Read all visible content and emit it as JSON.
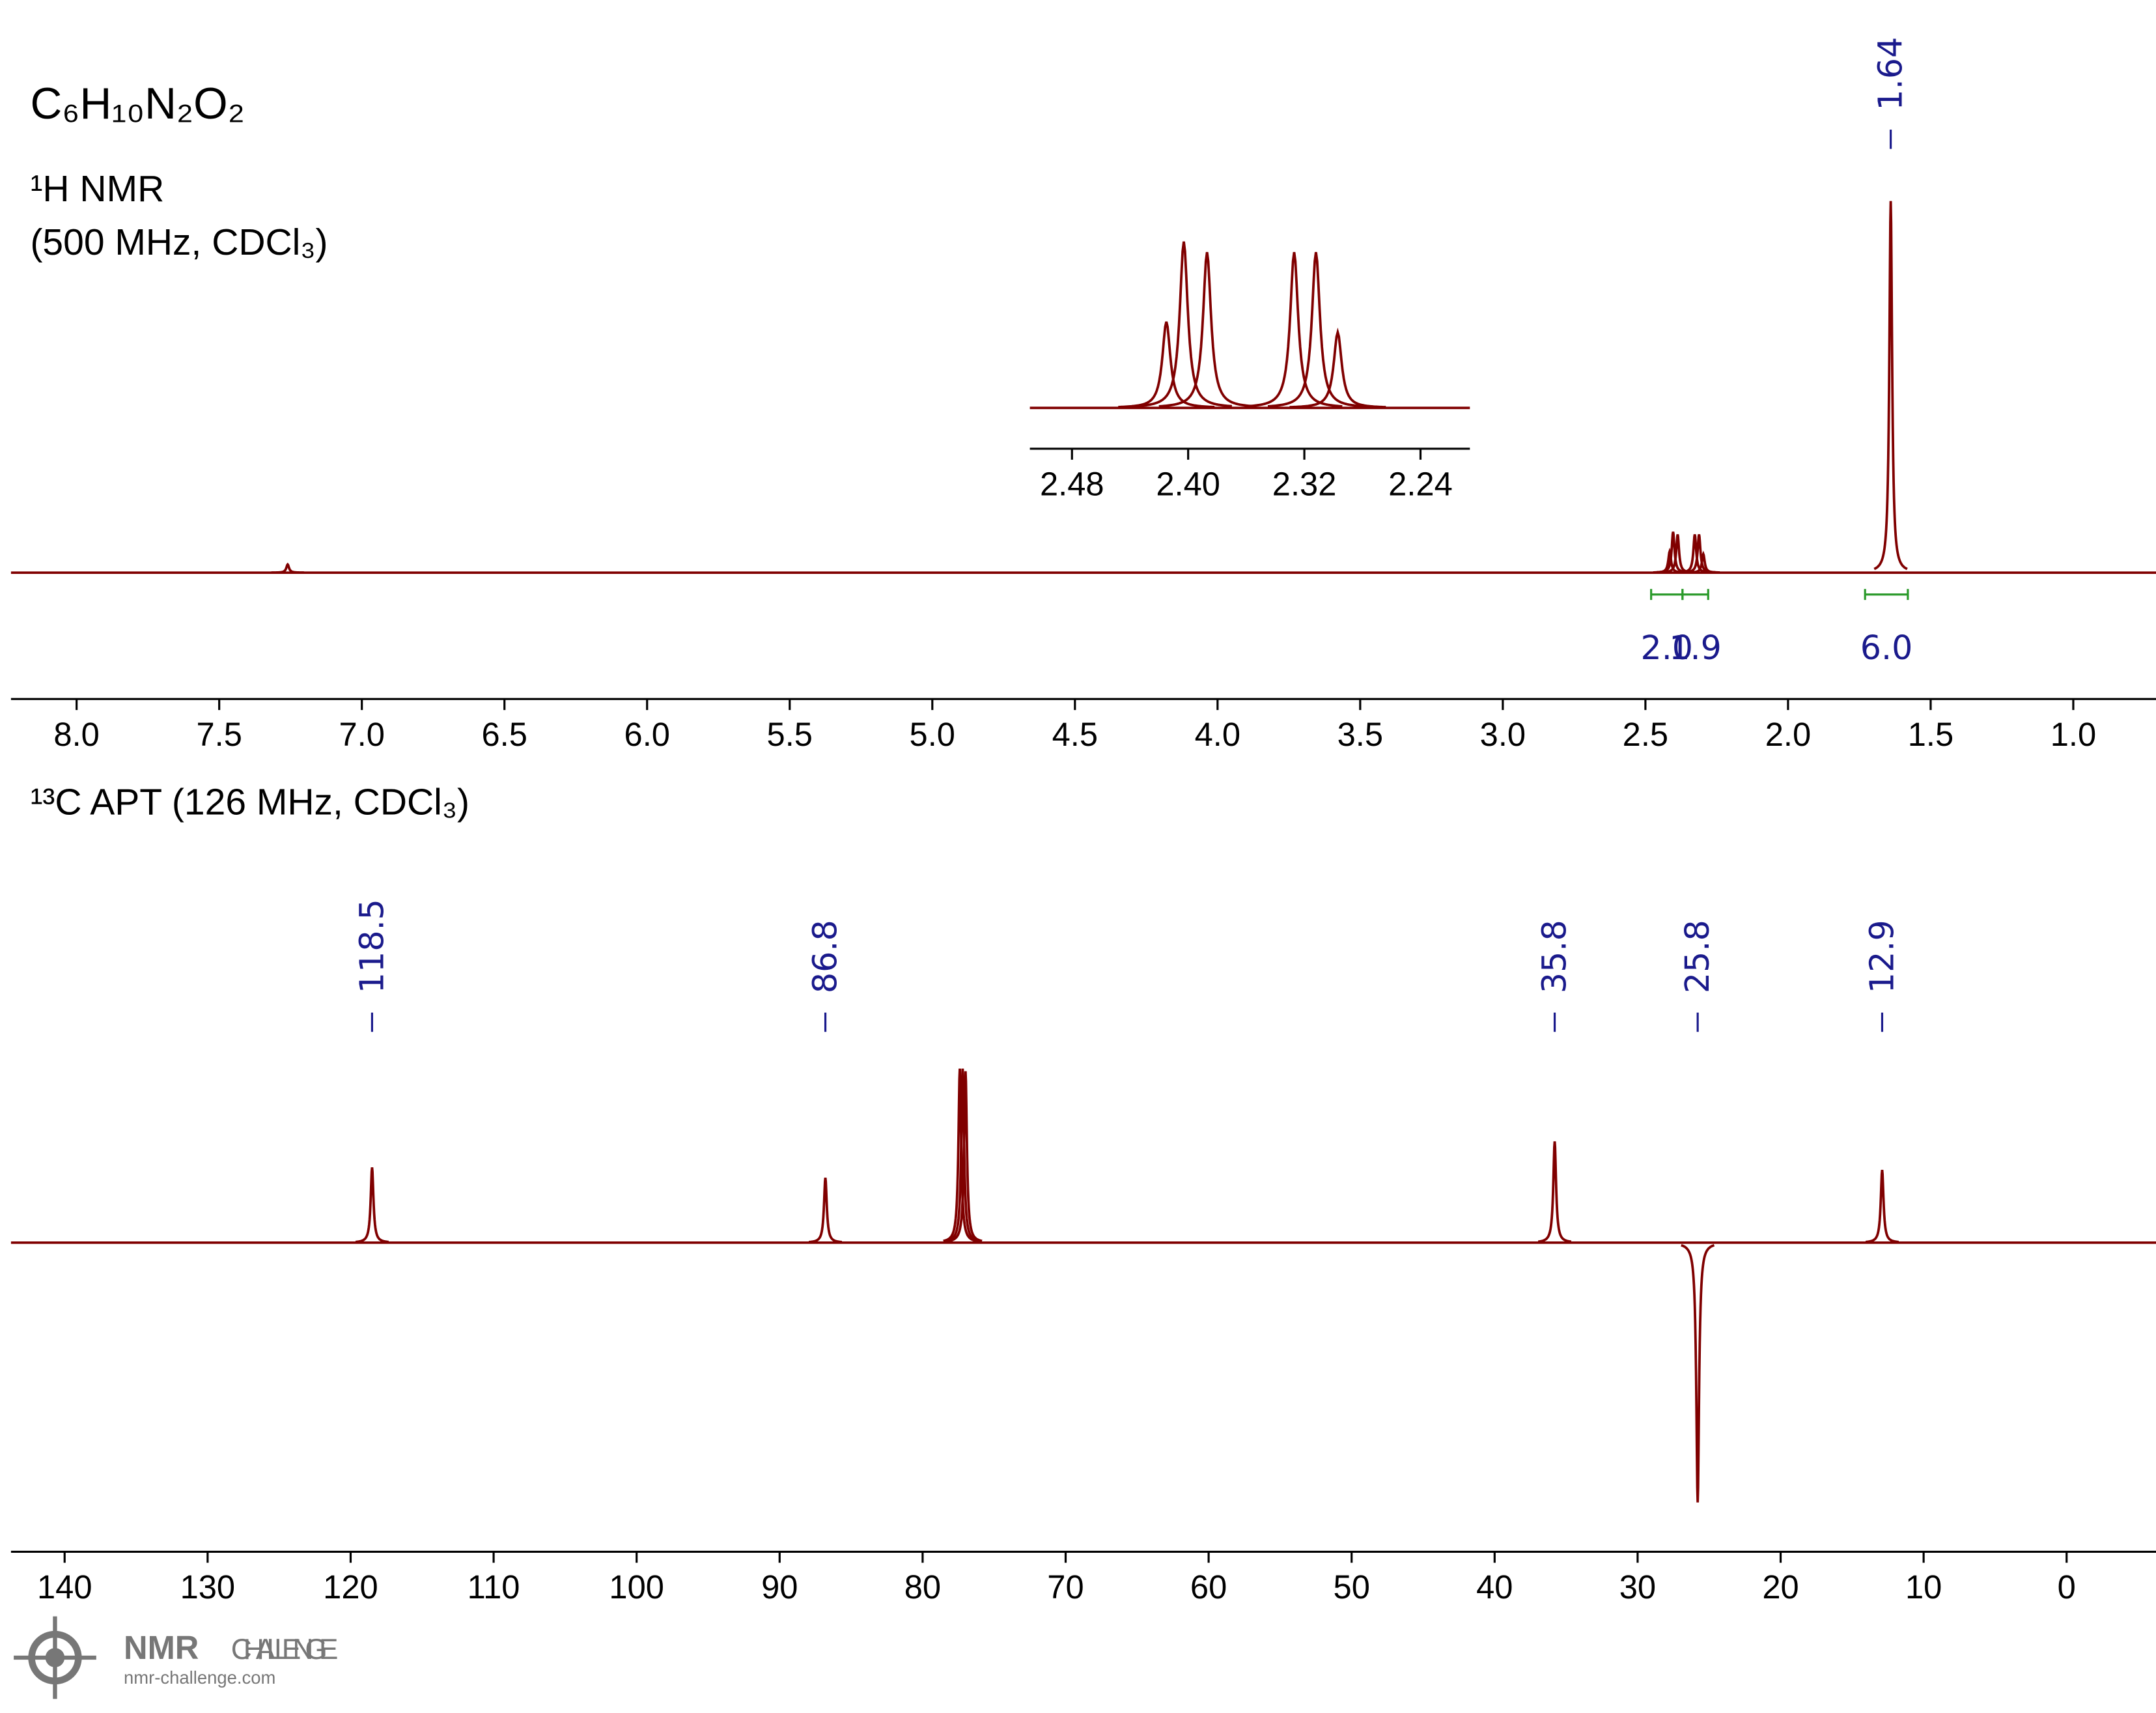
{
  "chart_data": [
    {
      "type": "spectrum",
      "title": "C₆H₁₀N₂O₂",
      "subtitle": "¹H NMR",
      "note": "(500 MHz, CDCl₃)",
      "color": "#800000",
      "x": [
        7.26,
        2.415,
        2.403,
        2.387,
        2.327,
        2.312,
        2.297,
        1.64
      ],
      "values": [
        0.022,
        0.057,
        0.11,
        0.103,
        0.103,
        0.103,
        0.05,
        1.0
      ],
      "xlim": [
        8.23,
        0.71
      ],
      "ylim": [
        -0.34,
        1.54
      ],
      "xticks": [
        {
          "value": 8,
          "label": "8.0"
        },
        7.5,
        {
          "value": 7,
          "label": "7.0"
        },
        6.5,
        {
          "value": 6,
          "label": "6.0"
        },
        5.5,
        {
          "value": 5,
          "label": "5.0"
        },
        4.5,
        {
          "value": 4,
          "label": "4.0"
        },
        3.5,
        {
          "value": 3,
          "label": "3.0"
        },
        2.5,
        {
          "value": 2,
          "label": "2.0"
        },
        1.5,
        {
          "value": 1,
          "label": "1.0"
        }
      ],
      "peak_labels": [
        1.64
      ],
      "integrals": [
        {
          "from": 2.48,
          "to": 2.37,
          "value": 2,
          "label": "2.0"
        },
        {
          "from": 2.37,
          "to": 2.28,
          "value": 1.9
        },
        {
          "from": 1.73,
          "to": 1.58,
          "value": 6,
          "label": "6.0"
        }
      ]
    },
    {
      "type": "spectrum",
      "color": "#800000",
      "x": [
        2.415,
        2.403,
        2.387,
        2.327,
        2.312,
        2.297
      ],
      "values": [
        0.057,
        0.11,
        0.103,
        0.103,
        0.103,
        0.05
      ],
      "xlim": [
        2.509,
        2.206
      ],
      "ylim": [
        -0.027,
        0.124
      ],
      "xticks": [
        2.48,
        {
          "value": 2.4,
          "label": "2.40"
        },
        2.32,
        2.24
      ]
    },
    {
      "type": "spectrum",
      "title": "¹³C APT (126 MHz, CDCl₃)",
      "color": "#800000",
      "x": [
        118.5,
        86.8,
        77.4,
        77.2,
        77.0,
        35.8,
        25.8,
        12.9
      ],
      "values": [
        0.29,
        0.25,
        0.67,
        0.67,
        0.66,
        0.39,
        -1.0,
        0.28
      ],
      "xlim": [
        143.75,
        -6.25
      ],
      "ylim": [
        -1.19,
        1.5
      ],
      "xticks": [
        140,
        130,
        120,
        110,
        100,
        90,
        80,
        70,
        60,
        50,
        40,
        30,
        20,
        10,
        0
      ],
      "peak_labels": [
        118.5,
        86.8,
        35.8,
        25.8,
        12.9
      ]
    }
  ],
  "logo": {
    "title": "NMR",
    "subtitle": "CHALLENGE",
    "url": "nmr-challenge.com"
  }
}
